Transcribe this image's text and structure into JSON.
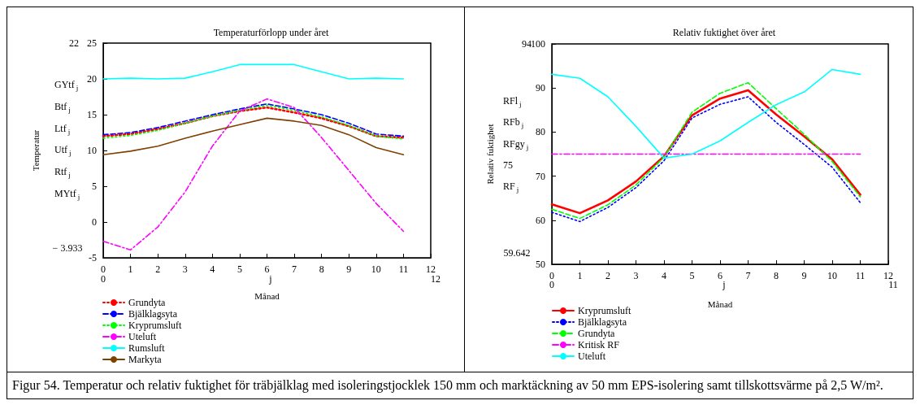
{
  "chart_data": [
    {
      "type": "line",
      "title": "Temperaturförlopp under året",
      "xlabel": "Månad",
      "ylabel": "Temperatur",
      "x": [
        0,
        1,
        2,
        3,
        4,
        5,
        6,
        7,
        8,
        9,
        10,
        11
      ],
      "xlim": [
        0,
        12
      ],
      "xticks": [
        0,
        1,
        2,
        3,
        4,
        5,
        6,
        7,
        8,
        9,
        10,
        11,
        12
      ],
      "ylim": [
        -5,
        25
      ],
      "yticks": [
        -5,
        0,
        5,
        10,
        15,
        20,
        25
      ],
      "grid": false,
      "legend": "bottom",
      "marker": "none",
      "annotations": [
        "GYtf$_{j}$",
        "Btf$_{j}$",
        "Ltf$_{j}$",
        "Utf$_{j}$",
        "Rtf$_{j}$",
        "MYtf$_{j}$",
        "22",
        "− 3.933",
        "0",
        "j",
        "12"
      ],
      "series": [
        {
          "name": "Grundyta",
          "color": "#ff0000",
          "line_style": "dotted",
          "values": [
            12.0,
            12.3,
            13.0,
            13.8,
            14.8,
            15.5,
            16.0,
            15.3,
            14.5,
            13.4,
            12.0,
            11.8
          ]
        },
        {
          "name": "Bjälklagsyta",
          "color": "#0000ff",
          "line_style": "dashed",
          "values": [
            12.2,
            12.5,
            13.2,
            14.1,
            15.0,
            15.8,
            16.5,
            15.8,
            15.0,
            13.8,
            12.3,
            12.0
          ]
        },
        {
          "name": "Kryprumsluft",
          "color": "#00ff00",
          "line_style": "dotted",
          "values": [
            11.7,
            12.1,
            12.8,
            13.8,
            14.8,
            15.6,
            16.3,
            15.6,
            14.7,
            13.5,
            12.0,
            11.6
          ]
        },
        {
          "name": "Uteluft",
          "color": "#ff00ff",
          "line_style": "dashdot",
          "values": [
            -2.7,
            -3.9,
            -0.7,
            4.2,
            10.6,
            15.5,
            17.2,
            16.0,
            11.8,
            7.2,
            2.6,
            -1.3
          ]
        },
        {
          "name": "Rumsluft",
          "color": "#00ffff",
          "line_style": "solid",
          "values": [
            20.0,
            20.1,
            20.0,
            20.1,
            21.0,
            22.0,
            22.0,
            22.0,
            21.0,
            20.0,
            20.1,
            20.0
          ]
        },
        {
          "name": "Markyta",
          "color": "#804000",
          "line_style": "solid",
          "values": [
            9.4,
            9.9,
            10.6,
            11.7,
            12.7,
            13.6,
            14.5,
            14.1,
            13.5,
            12.2,
            10.4,
            9.4
          ]
        }
      ]
    },
    {
      "type": "line",
      "title": "Relativ fuktighet över året",
      "xlabel": "Månad",
      "ylabel": "Relativ fuktighet",
      "x": [
        0,
        1,
        2,
        3,
        4,
        5,
        6,
        7,
        8,
        9,
        10,
        11
      ],
      "xlim": [
        0,
        12
      ],
      "xticks": [
        0,
        1,
        2,
        3,
        4,
        5,
        6,
        7,
        8,
        9,
        10,
        11,
        12
      ],
      "ylim": [
        50,
        100
      ],
      "yticks": [
        50,
        60,
        70,
        80,
        90,
        100
      ],
      "grid": false,
      "legend": "bottom",
      "marker": "none",
      "annotations": [
        "RFl$_{j}$",
        "RFb$_{j}$",
        "RFgy$_{j}$",
        "75",
        "RF$_{j}$",
        "94",
        "59.642",
        "0",
        "j",
        "11"
      ],
      "series": [
        {
          "name": "Kryprumsluft",
          "color": "#ff0000",
          "line_style": "solid",
          "values": [
            63.6,
            61.6,
            64.5,
            68.8,
            74.5,
            83.8,
            87.6,
            89.5,
            84.0,
            79.0,
            73.8,
            65.8
          ]
        },
        {
          "name": "Bjälklagsyta",
          "color": "#0000ff",
          "line_style": "dotted",
          "values": [
            61.8,
            59.7,
            62.9,
            67.4,
            73.5,
            83.2,
            86.3,
            88.0,
            82.2,
            77.2,
            72.0,
            64.0
          ]
        },
        {
          "name": "Grundyta",
          "color": "#00ff00",
          "line_style": "dashed",
          "values": [
            62.5,
            60.4,
            63.5,
            68.0,
            74.3,
            84.5,
            88.8,
            91.2,
            85.3,
            79.5,
            73.3,
            65.3
          ]
        },
        {
          "name": "Kritisk RF",
          "color": "#ff00ff",
          "line_style": "dashdot",
          "values": [
            75,
            75,
            75,
            75,
            75,
            75,
            75,
            75,
            75,
            75,
            75,
            75
          ]
        },
        {
          "name": "Uteluft",
          "color": "#00ffff",
          "line_style": "solid",
          "values": [
            93.1,
            92.2,
            88.0,
            81.3,
            74.1,
            75.0,
            78.0,
            82.2,
            86.2,
            89.1,
            94.2,
            93.1
          ]
        }
      ]
    },
    {
      "type": "other",
      "annotations": [
        "Figur 54. Temperatur och relativ fuktighet för träbjälklag med isoleringstjocklek 150 mm och marktäckning av 50 mm EPS-isolering samt tillskottsvärme på 2,5 W/m²."
      ]
    }
  ]
}
